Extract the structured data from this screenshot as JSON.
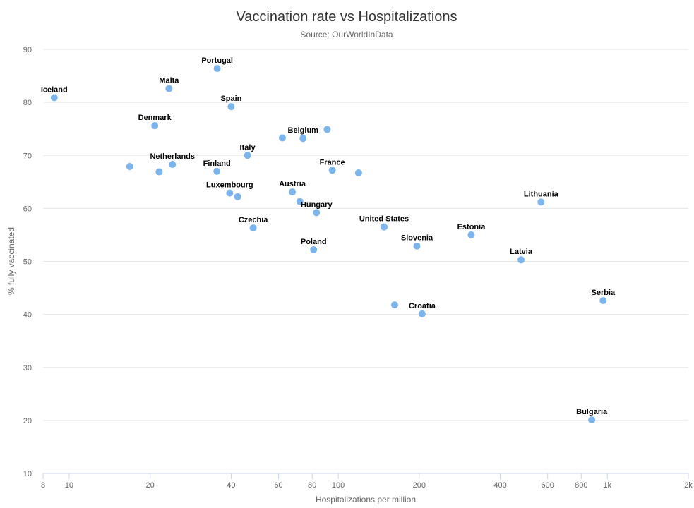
{
  "chart_data": {
    "type": "scatter",
    "title": "Vaccination rate vs Hospitalizations",
    "subtitle": "Source: OurWorldInData",
    "xlabel": "Hospitalizations per million",
    "ylabel": "% fully vaccinated",
    "x_scale": "log",
    "xlim": [
      8,
      2000
    ],
    "ylim": [
      10,
      90
    ],
    "x_ticks": [
      8,
      10,
      20,
      40,
      60,
      80,
      100,
      200,
      400,
      600,
      800,
      1000,
      2000
    ],
    "x_tick_labels": [
      "8",
      "10",
      "20",
      "40",
      "60",
      "80",
      "100",
      "200",
      "400",
      "600",
      "800",
      "1k",
      "2k"
    ],
    "y_ticks": [
      10,
      20,
      30,
      40,
      50,
      60,
      70,
      80,
      90
    ],
    "y_tick_labels": [
      "10",
      "20",
      "30",
      "40",
      "50",
      "60",
      "70",
      "80",
      "90"
    ],
    "grid": true,
    "marker_color": "#7cb5ec",
    "points": [
      {
        "label": "Iceland",
        "x": 8.8,
        "y": 80.9
      },
      {
        "label": "Portugal",
        "x": 35.5,
        "y": 86.4
      },
      {
        "label": "Malta",
        "x": 23.5,
        "y": 82.6
      },
      {
        "label": "Spain",
        "x": 40,
        "y": 79.2
      },
      {
        "label": "Denmark",
        "x": 20.8,
        "y": 75.6
      },
      {
        "label": "",
        "x": 62,
        "y": 73.3
      },
      {
        "label": "Belgium",
        "x": 74,
        "y": 73.2
      },
      {
        "label": "",
        "x": 91,
        "y": 74.9
      },
      {
        "label": "Italy",
        "x": 46,
        "y": 70.0
      },
      {
        "label": "",
        "x": 16.8,
        "y": 67.9
      },
      {
        "label": "",
        "x": 21.6,
        "y": 66.9
      },
      {
        "label": "Netherlands",
        "x": 24.2,
        "y": 68.3
      },
      {
        "label": "Finland",
        "x": 35.4,
        "y": 67.0
      },
      {
        "label": "France",
        "x": 95,
        "y": 67.2
      },
      {
        "label": "",
        "x": 119,
        "y": 66.7
      },
      {
        "label": "Luxembourg",
        "x": 39.5,
        "y": 62.9
      },
      {
        "label": "",
        "x": 42.3,
        "y": 62.2
      },
      {
        "label": "Austria",
        "x": 67.5,
        "y": 63.1
      },
      {
        "label": "",
        "x": 72,
        "y": 61.3
      },
      {
        "label": "Hungary",
        "x": 83,
        "y": 59.2
      },
      {
        "label": "Czechia",
        "x": 48.3,
        "y": 56.3
      },
      {
        "label": "Poland",
        "x": 81,
        "y": 52.2
      },
      {
        "label": "United States",
        "x": 148,
        "y": 56.5
      },
      {
        "label": "Slovenia",
        "x": 196,
        "y": 52.9
      },
      {
        "label": "Estonia",
        "x": 312,
        "y": 55.0
      },
      {
        "label": "Lithuania",
        "x": 567,
        "y": 61.2
      },
      {
        "label": "Latvia",
        "x": 478,
        "y": 50.3
      },
      {
        "label": "",
        "x": 162,
        "y": 41.8
      },
      {
        "label": "Croatia",
        "x": 205,
        "y": 40.1
      },
      {
        "label": "Serbia",
        "x": 965,
        "y": 42.6
      },
      {
        "label": "Bulgaria",
        "x": 875,
        "y": 20.1
      }
    ]
  }
}
